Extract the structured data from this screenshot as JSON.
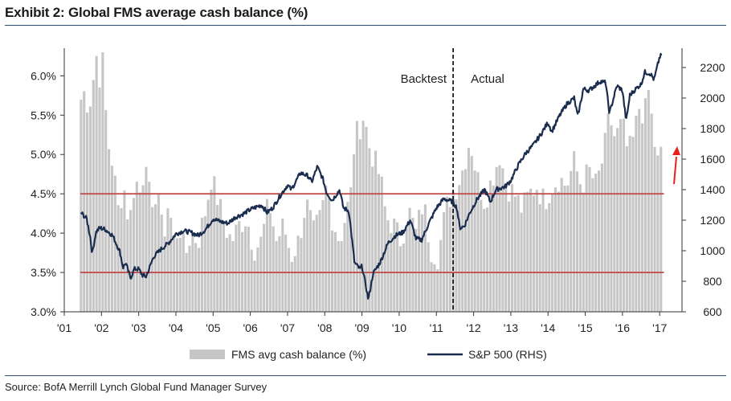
{
  "header": {
    "title": "Exhibit 2: Global FMS average cash balance (%)"
  },
  "footer": {
    "source": "Source: BofA Merrill Lynch Global Fund Manager Survey"
  },
  "colors": {
    "bars": "#c6c6c6",
    "line": "#1b2d4f",
    "ref_lines": "#c0504d",
    "arrow": "#e8201b",
    "divider": "#000000"
  },
  "chart_data": {
    "type": "bar+line",
    "left_axis": {
      "label": "FMS avg cash balance (%)",
      "ylim": [
        3.0,
        6.3
      ],
      "ticks": [
        "3.0%",
        "3.5%",
        "4.0%",
        "4.5%",
        "5.0%",
        "5.5%",
        "6.0%"
      ],
      "tick_values": [
        3.0,
        3.5,
        4.0,
        4.5,
        5.0,
        5.5,
        6.0
      ]
    },
    "right_axis": {
      "label": "S&P 500 (RHS)",
      "ylim": [
        600,
        2300
      ],
      "ticks": [
        "600",
        "800",
        "1000",
        "1200",
        "1400",
        "1600",
        "1800",
        "2000",
        "2200"
      ],
      "tick_values": [
        600,
        800,
        1000,
        1200,
        1400,
        1600,
        1800,
        2000,
        2200
      ]
    },
    "x_axis": {
      "xlim": [
        2001.0,
        2017.6
      ],
      "tick_labels": [
        "'01",
        "'02",
        "'03",
        "'04",
        "'05",
        "'06",
        "'07",
        "'08",
        "'09",
        "'10",
        "'11",
        "'12",
        "'13",
        "'14",
        "'15",
        "'16",
        "'17"
      ],
      "tick_values": [
        2001,
        2002,
        2003,
        2004,
        2005,
        2006,
        2007,
        2008,
        2009,
        2010,
        2011,
        2012,
        2013,
        2014,
        2015,
        2016,
        2017
      ]
    },
    "reference_lines": [
      4.5,
      3.5
    ],
    "divider": {
      "x": 2011.45,
      "left_label": "Backtest",
      "right_label": "Actual"
    },
    "series": [
      {
        "name": "FMS avg cash balance (%)",
        "type": "bar",
        "axis": "left",
        "anchors": [
          [
            2001.45,
            5.7
          ],
          [
            2001.55,
            5.8
          ],
          [
            2001.65,
            5.6
          ],
          [
            2001.75,
            5.8
          ],
          [
            2001.85,
            6.3
          ],
          [
            2001.95,
            6.0
          ],
          [
            2002.05,
            6.2
          ],
          [
            2002.15,
            5.2
          ],
          [
            2002.3,
            4.9
          ],
          [
            2002.45,
            4.3
          ],
          [
            2002.6,
            4.6
          ],
          [
            2002.75,
            4.1
          ],
          [
            2002.9,
            4.7
          ],
          [
            2003.05,
            4.5
          ],
          [
            2003.2,
            5.0
          ],
          [
            2003.35,
            4.1
          ],
          [
            2003.5,
            4.7
          ],
          [
            2003.65,
            3.9
          ],
          [
            2003.8,
            4.4
          ],
          [
            2003.95,
            3.9
          ],
          [
            2004.1,
            4.1
          ],
          [
            2004.25,
            3.7
          ],
          [
            2004.4,
            4.0
          ],
          [
            2004.6,
            3.9
          ],
          [
            2004.8,
            4.3
          ],
          [
            2004.95,
            4.7
          ],
          [
            2005.15,
            4.4
          ],
          [
            2005.3,
            4.1
          ],
          [
            2005.5,
            3.9
          ],
          [
            2005.7,
            4.1
          ],
          [
            2005.9,
            4.2
          ],
          [
            2006.1,
            3.8
          ],
          [
            2006.3,
            3.9
          ],
          [
            2006.5,
            4.4
          ],
          [
            2006.7,
            3.9
          ],
          [
            2006.9,
            4.1
          ],
          [
            2007.1,
            3.7
          ],
          [
            2007.3,
            3.9
          ],
          [
            2007.5,
            4.4
          ],
          [
            2007.7,
            4.0
          ],
          [
            2007.9,
            4.2
          ],
          [
            2008.05,
            4.6
          ],
          [
            2008.2,
            4.2
          ],
          [
            2008.4,
            3.9
          ],
          [
            2008.55,
            4.2
          ],
          [
            2008.7,
            4.5
          ],
          [
            2008.8,
            5.2
          ],
          [
            2008.9,
            5.3
          ],
          [
            2009.05,
            5.5
          ],
          [
            2009.2,
            5.1
          ],
          [
            2009.35,
            4.9
          ],
          [
            2009.5,
            4.7
          ],
          [
            2009.65,
            4.2
          ],
          [
            2009.85,
            4.1
          ],
          [
            2010.05,
            3.9
          ],
          [
            2010.25,
            4.3
          ],
          [
            2010.45,
            4.0
          ],
          [
            2010.65,
            4.4
          ],
          [
            2010.85,
            3.8
          ],
          [
            2011.05,
            3.7
          ],
          [
            2011.25,
            4.3
          ],
          [
            2011.4,
            4.5
          ],
          [
            2011.55,
            4.6
          ],
          [
            2011.7,
            4.8
          ],
          [
            2011.9,
            5.2
          ],
          [
            2012.1,
            4.7
          ],
          [
            2012.3,
            4.4
          ],
          [
            2012.5,
            4.7
          ],
          [
            2012.7,
            5.0
          ],
          [
            2012.9,
            4.6
          ],
          [
            2013.1,
            4.5
          ],
          [
            2013.3,
            4.3
          ],
          [
            2013.5,
            4.5
          ],
          [
            2013.7,
            4.6
          ],
          [
            2013.9,
            4.4
          ],
          [
            2014.1,
            4.6
          ],
          [
            2014.3,
            4.7
          ],
          [
            2014.5,
            4.6
          ],
          [
            2014.7,
            4.9
          ],
          [
            2014.9,
            4.6
          ],
          [
            2015.1,
            4.8
          ],
          [
            2015.3,
            4.6
          ],
          [
            2015.5,
            5.0
          ],
          [
            2015.65,
            5.5
          ],
          [
            2015.8,
            5.2
          ],
          [
            2016.0,
            5.4
          ],
          [
            2016.15,
            5.0
          ],
          [
            2016.3,
            5.2
          ],
          [
            2016.45,
            5.6
          ],
          [
            2016.6,
            5.5
          ],
          [
            2016.7,
            5.8
          ],
          [
            2016.8,
            5.4
          ],
          [
            2016.9,
            5.0
          ],
          [
            2017.0,
            4.8
          ],
          [
            2017.05,
            5.1
          ]
        ]
      },
      {
        "name": "S&P 500 (RHS)",
        "type": "line",
        "axis": "right",
        "anchors": [
          [
            2001.45,
            1250
          ],
          [
            2001.6,
            1210
          ],
          [
            2001.7,
            1090
          ],
          [
            2001.75,
            980
          ],
          [
            2001.85,
            1120
          ],
          [
            2001.95,
            1150
          ],
          [
            2002.1,
            1140
          ],
          [
            2002.3,
            1100
          ],
          [
            2002.5,
            990
          ],
          [
            2002.58,
            890
          ],
          [
            2002.65,
            920
          ],
          [
            2002.78,
            820
          ],
          [
            2002.88,
            880
          ],
          [
            2003.0,
            880
          ],
          [
            2003.1,
            840
          ],
          [
            2003.2,
            830
          ],
          [
            2003.4,
            960
          ],
          [
            2003.6,
            1010
          ],
          [
            2003.8,
            1050
          ],
          [
            2004.0,
            1110
          ],
          [
            2004.2,
            1130
          ],
          [
            2004.4,
            1120
          ],
          [
            2004.6,
            1100
          ],
          [
            2004.8,
            1140
          ],
          [
            2005.0,
            1210
          ],
          [
            2005.2,
            1190
          ],
          [
            2005.4,
            1180
          ],
          [
            2005.6,
            1220
          ],
          [
            2005.8,
            1240
          ],
          [
            2006.0,
            1270
          ],
          [
            2006.3,
            1300
          ],
          [
            2006.45,
            1250
          ],
          [
            2006.6,
            1280
          ],
          [
            2006.8,
            1360
          ],
          [
            2007.0,
            1430
          ],
          [
            2007.1,
            1400
          ],
          [
            2007.35,
            1510
          ],
          [
            2007.55,
            1490
          ],
          [
            2007.65,
            1450
          ],
          [
            2007.8,
            1550
          ],
          [
            2007.95,
            1470
          ],
          [
            2008.05,
            1380
          ],
          [
            2008.2,
            1330
          ],
          [
            2008.4,
            1400
          ],
          [
            2008.5,
            1280
          ],
          [
            2008.65,
            1260
          ],
          [
            2008.72,
            1100
          ],
          [
            2008.8,
            920
          ],
          [
            2008.95,
            880
          ],
          [
            2009.0,
            900
          ],
          [
            2009.12,
            750
          ],
          [
            2009.17,
            680
          ],
          [
            2009.3,
            850
          ],
          [
            2009.5,
            930
          ],
          [
            2009.7,
            1050
          ],
          [
            2009.9,
            1100
          ],
          [
            2010.1,
            1120
          ],
          [
            2010.3,
            1200
          ],
          [
            2010.45,
            1080
          ],
          [
            2010.6,
            1070
          ],
          [
            2010.8,
            1180
          ],
          [
            2011.0,
            1280
          ],
          [
            2011.2,
            1340
          ],
          [
            2011.45,
            1320
          ],
          [
            2011.55,
            1280
          ],
          [
            2011.63,
            1150
          ],
          [
            2011.75,
            1160
          ],
          [
            2011.9,
            1250
          ],
          [
            2012.1,
            1340
          ],
          [
            2012.3,
            1400
          ],
          [
            2012.45,
            1320
          ],
          [
            2012.6,
            1400
          ],
          [
            2012.85,
            1420
          ],
          [
            2013.0,
            1460
          ],
          [
            2013.2,
            1560
          ],
          [
            2013.4,
            1640
          ],
          [
            2013.6,
            1690
          ],
          [
            2013.8,
            1760
          ],
          [
            2014.0,
            1840
          ],
          [
            2014.1,
            1780
          ],
          [
            2014.3,
            1880
          ],
          [
            2014.5,
            1960
          ],
          [
            2014.7,
            2000
          ],
          [
            2014.8,
            1880
          ],
          [
            2014.95,
            2060
          ],
          [
            2015.1,
            2050
          ],
          [
            2015.4,
            2110
          ],
          [
            2015.55,
            2100
          ],
          [
            2015.65,
            1900
          ],
          [
            2015.85,
            2080
          ],
          [
            2016.0,
            2050
          ],
          [
            2016.1,
            1850
          ],
          [
            2016.2,
            2020
          ],
          [
            2016.4,
            2070
          ],
          [
            2016.5,
            2090
          ],
          [
            2016.6,
            2170
          ],
          [
            2016.75,
            2160
          ],
          [
            2016.85,
            2120
          ],
          [
            2016.95,
            2220
          ],
          [
            2017.0,
            2270
          ],
          [
            2017.05,
            2280
          ]
        ]
      }
    ]
  }
}
